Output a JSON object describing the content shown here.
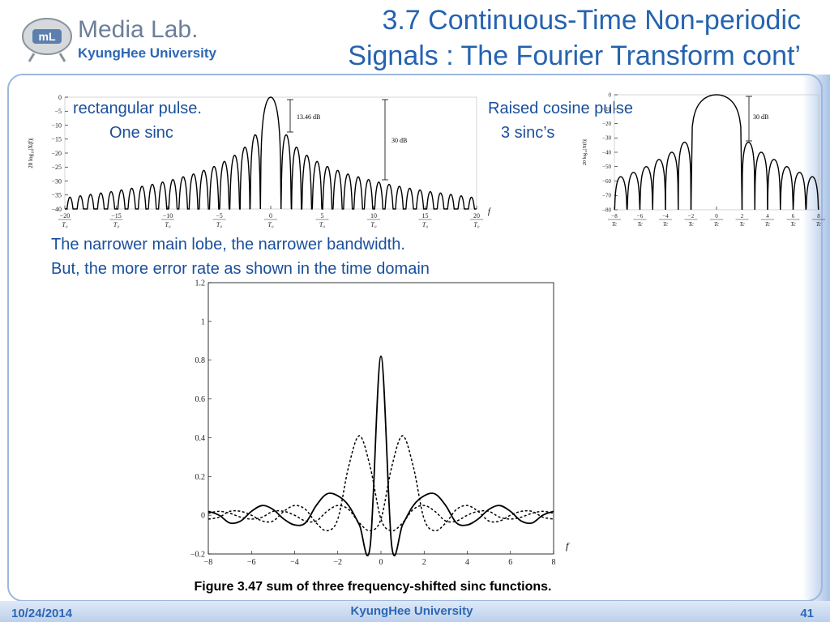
{
  "header": {
    "lab": "Media Lab.",
    "university": "KyungHee University",
    "title": [
      "3.7 Continuous-Time Non-periodic",
      "Signals : The Fourier Transform cont’"
    ]
  },
  "labels": {
    "rect": [
      "rectangular pulse.",
      "One sinc"
    ],
    "cosine": [
      "Raised cosine pulse",
      "3 sinc’s"
    ]
  },
  "notes": [
    "The narrower main lobe, the narrower bandwidth.",
    "But, the more error rate as shown in the time domain"
  ],
  "caption": "Figure 3.47 sum of three frequency-shifted sinc functions.",
  "footer": {
    "date": "10/24/2014",
    "center": "KyungHee University",
    "page": "41"
  },
  "chart_data": [
    {
      "type": "lobes",
      "y_label": "20 log₁₀|X(f)|",
      "x_label": "f",
      "x_denominator": "T₀",
      "annotations": [
        "13.46 dB",
        "30 dB"
      ],
      "color": "#000000",
      "x": [
        -19.5,
        -18.5,
        -17.5,
        -16.5,
        -15.5,
        -14.5,
        -13.5,
        -12.5,
        -11.5,
        -10.5,
        -9.5,
        -8.5,
        -7.5,
        -6.5,
        -5.5,
        -4.5,
        -3.5,
        -2.5,
        -1.5,
        0,
        1.5,
        2.5,
        3.5,
        4.5,
        5.5,
        6.5,
        7.5,
        8.5,
        9.5,
        10.5,
        11.5,
        12.5,
        13.5,
        14.5,
        15.5,
        16.5,
        17.5,
        18.5,
        19.5
      ],
      "values": [
        -35.8,
        -35.3,
        -34.8,
        -34.3,
        -33.8,
        -33.2,
        -32.6,
        -31.9,
        -31.2,
        -30.4,
        -29.5,
        -28.5,
        -27.5,
        -26.2,
        -24.8,
        -23,
        -20.8,
        -17.9,
        -13.46,
        0,
        -13.46,
        -17.9,
        -20.8,
        -23,
        -24.8,
        -26.2,
        -27.5,
        -28.5,
        -29.5,
        -30.4,
        -31.2,
        -31.9,
        -32.6,
        -33.2,
        -33.8,
        -34.3,
        -34.8,
        -35.3,
        -35.8
      ],
      "xlim": [
        -20,
        20
      ],
      "xticks": [
        {
          "value": -20,
          "label": "−20"
        },
        {
          "value": -15,
          "label": "−15"
        },
        {
          "value": -10,
          "label": "−10"
        },
        {
          "value": -5,
          "label": "−5"
        },
        0,
        5,
        10,
        15,
        20
      ],
      "ylim": [
        -40,
        0
      ],
      "yticks": [
        0,
        {
          "value": -5,
          "label": "−5"
        },
        {
          "value": -10,
          "label": "−10"
        },
        {
          "value": -15,
          "label": "−15"
        },
        {
          "value": -20,
          "label": "−20"
        },
        {
          "value": -25,
          "label": "−25"
        },
        {
          "value": -30,
          "label": "−30"
        },
        {
          "value": -35,
          "label": "−35"
        },
        {
          "value": -40,
          "label": "−40"
        }
      ]
    },
    {
      "type": "lobes",
      "y_label": "20 log₁₀|X(f)|",
      "x_label": "f",
      "x_denominator": "Tc",
      "annotations": [
        "30 dB"
      ],
      "color": "#000000",
      "x": [
        -7.5,
        -6.5,
        -5.5,
        -4.5,
        -3.5,
        -2.5,
        0,
        2.5,
        3.5,
        4.5,
        5.5,
        6.5,
        7.5
      ],
      "values": [
        -57,
        -54,
        -50,
        -45,
        -40,
        -33,
        0,
        -33,
        -40,
        -45,
        -50,
        -54,
        -57
      ],
      "xlim": [
        -8,
        8
      ],
      "xticks": [
        {
          "value": -8,
          "label": "−8"
        },
        {
          "value": -6,
          "label": "−6"
        },
        {
          "value": -4,
          "label": "−4"
        },
        {
          "value": -2,
          "label": "−2"
        },
        0,
        2,
        4,
        6,
        8
      ],
      "ylim": [
        -80,
        0
      ],
      "yticks": [
        0,
        {
          "value": -10,
          "label": "−10"
        },
        {
          "value": -20,
          "label": "−20"
        },
        {
          "value": -30,
          "label": "−30"
        },
        {
          "value": -40,
          "label": "−40"
        },
        {
          "value": -50,
          "label": "−50"
        },
        {
          "value": -60,
          "label": "−60"
        },
        {
          "value": -70,
          "label": "−70"
        },
        {
          "value": -80,
          "label": "−80"
        }
      ]
    },
    {
      "type": "line",
      "x_label": "f",
      "x": [
        -8,
        -7.5,
        -7,
        -6.5,
        -6,
        -5.5,
        -5,
        -4.5,
        -4,
        -3.5,
        -3,
        -2.5,
        -2,
        -1.5,
        -1,
        -0.5,
        0,
        0.5,
        1,
        1.5,
        2,
        2.5,
        3,
        3.5,
        4,
        4.5,
        5,
        5.5,
        6,
        6.5,
        7,
        7.5,
        8
      ],
      "series": [
        {
          "color": "#000000",
          "style": "solid",
          "values": [
            0.02,
            0,
            -0.04,
            -0.03,
            0.02,
            0.05,
            0.03,
            -0.02,
            -0.05,
            -0.04,
            0.05,
            0.11,
            0.1,
            0.05,
            -0.05,
            -0.16,
            0.82,
            -0.16,
            -0.05,
            0.05,
            0.1,
            0.11,
            0.05,
            -0.04,
            -0.05,
            -0.02,
            0.03,
            0.05,
            0.02,
            -0.03,
            -0.04,
            0,
            0.02
          ]
        },
        {
          "color": "#000000",
          "style": "dashed",
          "values": [
            0.01,
            0.02,
            0.01,
            -0.01,
            -0.02,
            -0.01,
            0.02,
            0.02,
            0,
            -0.03,
            -0.03,
            0.02,
            0.05,
            0.03,
            -0.04,
            -0.08,
            -0.02,
            0.25,
            0.41,
            0.25,
            -0.02,
            -0.08,
            -0.04,
            0.03,
            0.05,
            0.02,
            -0.03,
            -0.03,
            0,
            0.02,
            0.02,
            -0.01,
            -0.02
          ]
        },
        {
          "color": "#000000",
          "style": "dashed",
          "values": [
            -0.02,
            -0.01,
            0.02,
            0.02,
            0,
            -0.03,
            -0.03,
            0.02,
            0.05,
            0.03,
            -0.04,
            -0.08,
            -0.02,
            0.25,
            0.41,
            0.25,
            -0.02,
            -0.08,
            -0.04,
            0.03,
            0.05,
            0.02,
            -0.03,
            -0.03,
            0,
            0.02,
            0.02,
            -0.01,
            -0.02,
            -0.01,
            0.01,
            0.02,
            0.01
          ]
        }
      ],
      "xlim": [
        -8,
        8
      ],
      "xticks": [
        {
          "value": -8,
          "label": "−8"
        },
        {
          "value": -6,
          "label": "−6"
        },
        {
          "value": -4,
          "label": "−4"
        },
        {
          "value": -2,
          "label": "−2"
        },
        0,
        2,
        4,
        6,
        8
      ],
      "ylim": [
        -0.2,
        1.2
      ],
      "yticks": [
        {
          "value": -0.2,
          "label": "−0.2"
        },
        0,
        0.2,
        0.4,
        0.6,
        0.8,
        1,
        1.2
      ]
    }
  ]
}
